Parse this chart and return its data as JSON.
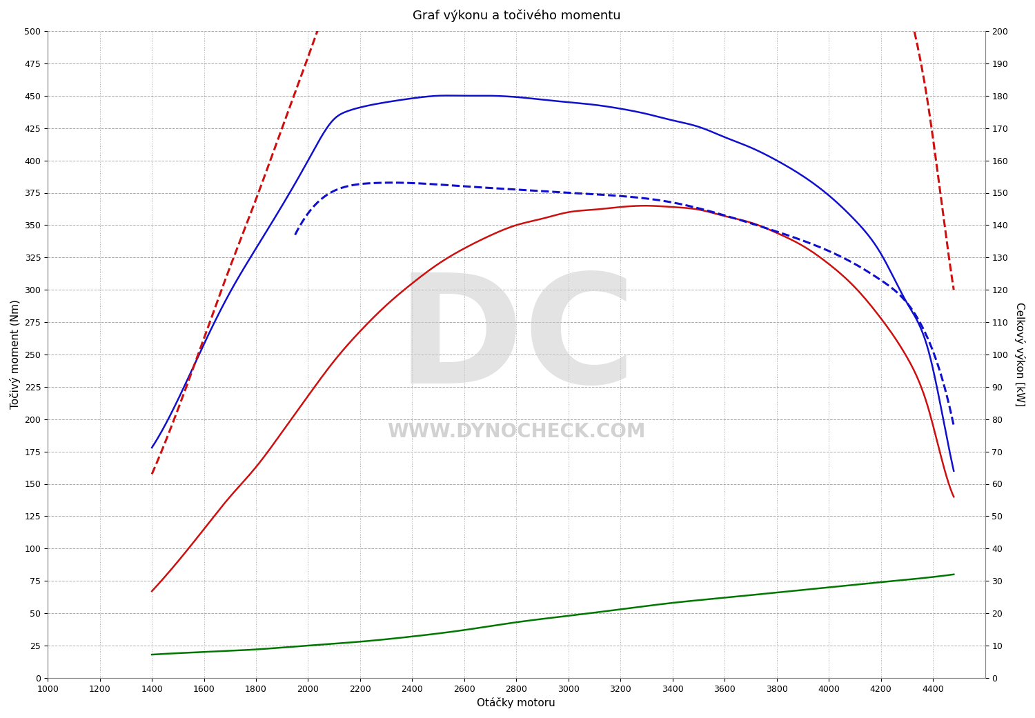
{
  "title": "Graf výkonu a točivého momentu",
  "xlabel": "Otáčky motoru",
  "ylabel_left": "Točivý moment (Nm)",
  "ylabel_right": "Celkový výkon [kW]",
  "xlim": [
    1000,
    4600
  ],
  "ylim_left": [
    0,
    500
  ],
  "ylim_right": [
    0,
    200
  ],
  "xticks": [
    1000,
    1200,
    1400,
    1600,
    1800,
    2000,
    2200,
    2400,
    2600,
    2800,
    3000,
    3200,
    3400,
    3600,
    3800,
    4000,
    4200,
    4400
  ],
  "yticks_left": [
    0,
    25,
    50,
    75,
    100,
    125,
    150,
    175,
    200,
    225,
    250,
    275,
    300,
    325,
    350,
    375,
    400,
    425,
    450,
    475,
    500
  ],
  "yticks_right": [
    0,
    10,
    20,
    30,
    40,
    50,
    60,
    70,
    80,
    90,
    100,
    110,
    120,
    130,
    140,
    150,
    160,
    170,
    180,
    190,
    200
  ],
  "watermark_text": "WWW.DYNOCHECK.COM",
  "watermark_dc": "DC",
  "background_color": "#ffffff",
  "blue_solid_torque": {
    "rpm": [
      1400,
      1500,
      1600,
      1700,
      1800,
      1900,
      2000,
      2050,
      2100,
      2150,
      2200,
      2300,
      2400,
      2500,
      2600,
      2700,
      2800,
      2900,
      3000,
      3100,
      3200,
      3300,
      3400,
      3500,
      3600,
      3700,
      3800,
      3900,
      4000,
      4100,
      4200,
      4300,
      4380,
      4430,
      4480
    ],
    "values": [
      178,
      215,
      258,
      298,
      332,
      365,
      400,
      418,
      432,
      438,
      441,
      445,
      448,
      450,
      450,
      450,
      449,
      447,
      445,
      443,
      440,
      436,
      431,
      426,
      418,
      410,
      400,
      388,
      373,
      354,
      328,
      290,
      255,
      210,
      160
    ]
  },
  "blue_dashed_power": {
    "rpm": [
      1950,
      2050,
      2150,
      2250,
      2400,
      2600,
      2800,
      3000,
      3200,
      3400,
      3600,
      3800,
      4000,
      4100,
      4200,
      4300,
      4380,
      4430,
      4480
    ],
    "values": [
      137,
      148,
      152,
      153,
      153,
      152,
      151,
      150,
      149,
      147,
      143,
      138,
      132,
      128,
      123,
      116,
      105,
      94,
      78
    ]
  },
  "red_solid_torque": {
    "rpm": [
      1400,
      1500,
      1600,
      1700,
      1800,
      1900,
      2000,
      2100,
      2200,
      2300,
      2400,
      2500,
      2600,
      2700,
      2800,
      2900,
      3000,
      3100,
      3200,
      3300,
      3400,
      3500,
      3600,
      3700,
      3800,
      3900,
      4000,
      4100,
      4200,
      4300,
      4380,
      4430,
      4480
    ],
    "values": [
      67,
      90,
      115,
      140,
      163,
      190,
      218,
      245,
      268,
      288,
      305,
      320,
      332,
      342,
      350,
      355,
      360,
      362,
      364,
      365,
      364,
      362,
      357,
      352,
      344,
      334,
      320,
      302,
      278,
      248,
      210,
      172,
      140
    ]
  },
  "red_dashed_power": {
    "rpm": [
      1400,
      1500,
      1600,
      1700,
      1800,
      1900,
      2000,
      2100,
      2200,
      2300,
      2400,
      2500,
      2600,
      2700,
      2800,
      2900,
      3000,
      3100,
      3200,
      3300,
      3400,
      3500,
      3600,
      3700,
      3800,
      3900,
      4000,
      4100,
      4200,
      4300,
      4380,
      4430,
      4480
    ],
    "values": [
      63,
      83,
      105,
      127,
      148,
      170,
      192,
      214,
      233,
      250,
      265,
      278,
      289,
      297,
      303,
      307,
      310,
      311,
      312,
      312,
      311,
      308,
      304,
      298,
      290,
      280,
      267,
      251,
      232,
      209,
      178,
      149,
      120
    ]
  },
  "green_solid": {
    "rpm": [
      1400,
      1600,
      1800,
      2000,
      2200,
      2400,
      2600,
      2800,
      3000,
      3200,
      3400,
      3600,
      3800,
      4000,
      4200,
      4400,
      4480
    ],
    "values": [
      18,
      20,
      22,
      25,
      28,
      32,
      37,
      43,
      48,
      53,
      58,
      62,
      66,
      70,
      74,
      78,
      80
    ]
  },
  "line_colors": {
    "blue": "#1010cc",
    "red": "#cc1010",
    "green": "#007700"
  },
  "line_widths": {
    "solid": 1.8,
    "dashed": 2.2
  }
}
